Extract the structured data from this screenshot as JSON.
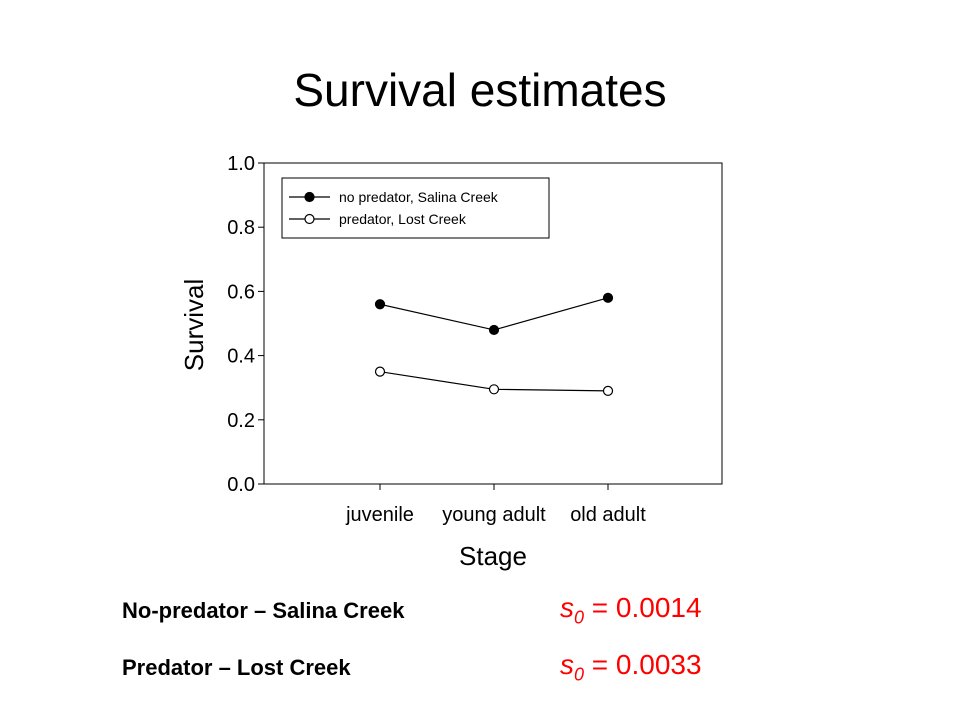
{
  "slide": {
    "title": "Survival estimates"
  },
  "chart_data": {
    "type": "line",
    "xlabel": "Stage",
    "ylabel": "Survival",
    "categories": [
      "juvenile",
      "young adult",
      "old adult"
    ],
    "ylim": [
      0.0,
      1.0
    ],
    "yticks": [
      0.0,
      0.2,
      0.4,
      0.6,
      0.8,
      1.0
    ],
    "ytick_labels": [
      "0.0",
      "0.2",
      "0.4",
      "0.6",
      "0.8",
      "1.0"
    ],
    "grid": false,
    "legend_position": "top-left",
    "series": [
      {
        "name": "no predator, Salina Creek",
        "marker": "filled-circle",
        "values": [
          0.56,
          0.48,
          0.58
        ]
      },
      {
        "name": "predator, Lost Creek",
        "marker": "open-circle",
        "values": [
          0.35,
          0.295,
          0.29
        ]
      }
    ]
  },
  "estimates": [
    {
      "label": "No-predator – Salina Creek",
      "symbol": "s",
      "subscript": "0",
      "value": "= 0.0014"
    },
    {
      "label": "Predator – Lost Creek",
      "symbol": "s",
      "subscript": "0",
      "value": "= 0.0033"
    }
  ],
  "colors": {
    "estimate_value": "#ff0000",
    "series_line": "#000000"
  }
}
